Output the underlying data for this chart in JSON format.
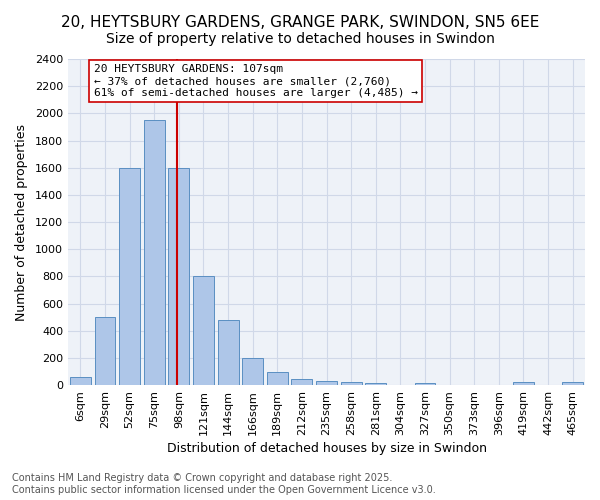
{
  "title1": "20, HEYTSBURY GARDENS, GRANGE PARK, SWINDON, SN5 6EE",
  "title2": "Size of property relative to detached houses in Swindon",
  "xlabel": "Distribution of detached houses by size in Swindon",
  "ylabel": "Number of detached properties",
  "bin_labels": [
    "6sqm",
    "29sqm",
    "52sqm",
    "75sqm",
    "98sqm",
    "121sqm",
    "144sqm",
    "166sqm",
    "189sqm",
    "212sqm",
    "235sqm",
    "258sqm",
    "281sqm",
    "304sqm",
    "327sqm",
    "350sqm",
    "373sqm",
    "396sqm",
    "419sqm",
    "442sqm",
    "465sqm"
  ],
  "bar_values": [
    60,
    500,
    1600,
    1950,
    1600,
    800,
    480,
    200,
    95,
    45,
    30,
    20,
    15,
    0,
    15,
    0,
    0,
    0,
    20,
    0,
    25
  ],
  "bar_color": "#aec6e8",
  "bar_edge_color": "#5a8fc2",
  "property_size": 107,
  "property_bin_index": 4,
  "annotation_text": "20 HEYTSBURY GARDENS: 107sqm\n← 37% of detached houses are smaller (2,760)\n61% of semi-detached houses are larger (4,485) →",
  "annotation_box_color": "#ffffff",
  "annotation_box_edge_color": "#cc0000",
  "vline_color": "#cc0000",
  "ylim": [
    0,
    2400
  ],
  "yticks": [
    0,
    200,
    400,
    600,
    800,
    1000,
    1200,
    1400,
    1600,
    1800,
    2000,
    2200,
    2400
  ],
  "grid_color": "#d0d8e8",
  "bg_color": "#eef2f8",
  "footnote": "Contains HM Land Registry data © Crown copyright and database right 2025.\nContains public sector information licensed under the Open Government Licence v3.0.",
  "title1_fontsize": 11,
  "title2_fontsize": 10,
  "xlabel_fontsize": 9,
  "ylabel_fontsize": 9,
  "tick_fontsize": 8,
  "annotation_fontsize": 8,
  "footnote_fontsize": 7
}
